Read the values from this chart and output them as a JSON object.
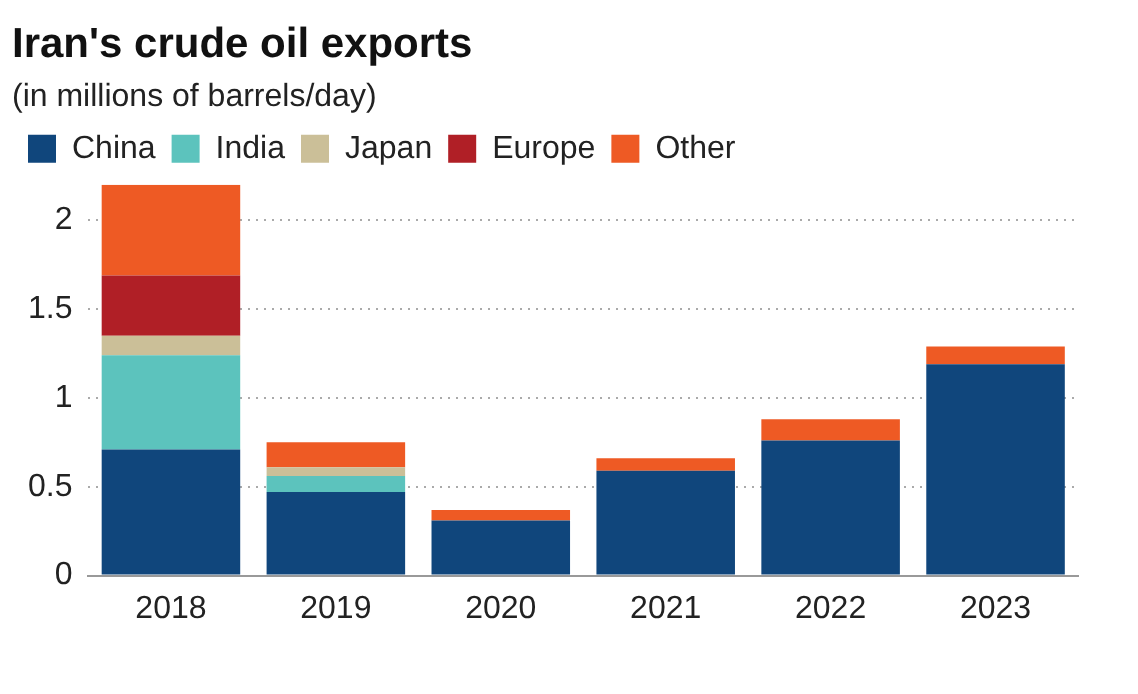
{
  "chart_data": {
    "type": "bar",
    "title": "Iran's crude oil exports",
    "subtitle": "(in millions of barrels/day)",
    "categories": [
      "2018",
      "2019",
      "2020",
      "2021",
      "2022",
      "2023"
    ],
    "stacked": true,
    "series": [
      {
        "name": "China",
        "color": "#10467c",
        "values": [
          0.71,
          0.47,
          0.31,
          0.59,
          0.76,
          1.19
        ]
      },
      {
        "name": "India",
        "color": "#5cc3bd",
        "values": [
          0.53,
          0.09,
          0,
          0,
          0,
          0
        ]
      },
      {
        "name": "Japan",
        "color": "#cbbf98",
        "values": [
          0.11,
          0.05,
          0,
          0,
          0,
          0
        ]
      },
      {
        "name": "Europe",
        "color": "#b01f26",
        "values": [
          0.34,
          0,
          0,
          0,
          0,
          0
        ]
      },
      {
        "name": "Other",
        "color": "#ee5a24",
        "values": [
          0.51,
          0.14,
          0.06,
          0.07,
          0.12,
          0.1
        ]
      }
    ],
    "ylim": [
      0,
      2.2
    ],
    "yticks": [
      0,
      0.5,
      1,
      1.5,
      2
    ],
    "grid": "y",
    "legend": "top left"
  }
}
